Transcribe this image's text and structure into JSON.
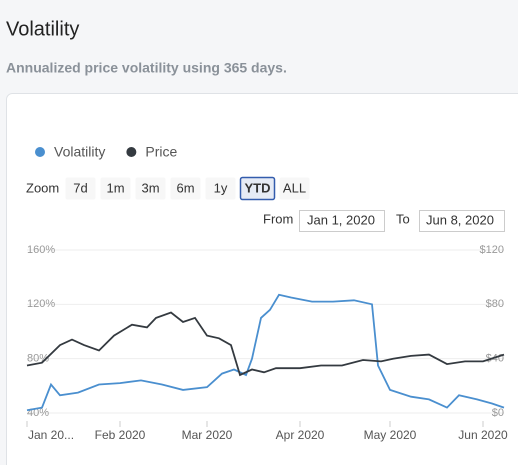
{
  "header": {
    "title": "Volatility",
    "subtitle": "Annualized price volatility using 365 days."
  },
  "zoom": {
    "label": "Zoom",
    "buttons": [
      "7d",
      "1m",
      "3m",
      "6m",
      "1y",
      "YTD",
      "ALL"
    ],
    "selected": "YTD"
  },
  "range": {
    "from_label": "From",
    "from": "Jan 1, 2020",
    "to_label": "To",
    "to": "Jun 8, 2020"
  },
  "chart_data": {
    "type": "line",
    "xlim": [
      "2020-01-01",
      "2020-06-08"
    ],
    "xticks": [
      {
        "value": "2020-01-01",
        "label": "Jan 20..."
      },
      {
        "value": "2020-02-01",
        "label": "Feb 2020"
      },
      {
        "value": "2020-03-01",
        "label": "Mar 2020"
      },
      {
        "value": "2020-04-01",
        "label": "Apr 2020"
      },
      {
        "value": "2020-05-01",
        "label": "May 2020"
      },
      {
        "value": "2020-06-01",
        "label": "Jun 2020"
      }
    ],
    "ylim": [
      40,
      160
    ],
    "yticks": [
      {
        "value": 40,
        "label": "40%"
      },
      {
        "value": 80,
        "label": "80%"
      },
      {
        "value": 120,
        "label": "120%"
      },
      {
        "value": 160,
        "label": "160%"
      }
    ],
    "y2lim": [
      0,
      120
    ],
    "y2ticks": [
      {
        "value": 0,
        "label": "$0"
      },
      {
        "value": 40,
        "label": "$40"
      },
      {
        "value": 80,
        "label": "$80"
      },
      {
        "value": 120,
        "label": "$120"
      }
    ],
    "legend": "top-left",
    "series": [
      {
        "name": "Volatility",
        "color": "#4a8fcf",
        "x": [
          "2020-01-01",
          "2020-01-06",
          "2020-01-09",
          "2020-01-12",
          "2020-01-18",
          "2020-01-25",
          "2020-02-01",
          "2020-02-08",
          "2020-02-15",
          "2020-02-22",
          "2020-03-01",
          "2020-03-06",
          "2020-03-10",
          "2020-03-14",
          "2020-03-16",
          "2020-03-19",
          "2020-03-22",
          "2020-03-25",
          "2020-03-29",
          "2020-04-05",
          "2020-04-12",
          "2020-04-19",
          "2020-04-25",
          "2020-04-27",
          "2020-05-01",
          "2020-05-08",
          "2020-05-14",
          "2020-05-20",
          "2020-05-24",
          "2020-05-30",
          "2020-06-04",
          "2020-06-08"
        ],
        "values": [
          42,
          44,
          61,
          53,
          55,
          61,
          62,
          64,
          61,
          57,
          59,
          69,
          72,
          68,
          80,
          110,
          116,
          127,
          125,
          122,
          122,
          123,
          120,
          75,
          57,
          52,
          50,
          44,
          53,
          50,
          47,
          44
        ]
      },
      {
        "name": "Price",
        "color": "#343a40",
        "axis": "y2",
        "x": [
          "2020-01-01",
          "2020-01-06",
          "2020-01-12",
          "2020-01-16",
          "2020-01-20",
          "2020-01-25",
          "2020-01-30",
          "2020-02-05",
          "2020-02-10",
          "2020-02-13",
          "2020-02-18",
          "2020-02-22",
          "2020-02-26",
          "2020-03-01",
          "2020-03-05",
          "2020-03-09",
          "2020-03-12",
          "2020-03-16",
          "2020-03-20",
          "2020-03-24",
          "2020-04-01",
          "2020-04-08",
          "2020-04-15",
          "2020-04-22",
          "2020-04-28",
          "2020-05-02",
          "2020-05-08",
          "2020-05-14",
          "2020-05-20",
          "2020-05-26",
          "2020-06-01",
          "2020-06-08"
        ],
        "values": [
          35,
          37,
          50,
          54,
          50,
          46,
          57,
          65,
          63,
          70,
          74,
          67,
          70,
          57,
          55,
          50,
          28,
          32,
          30,
          33,
          33,
          35,
          35,
          39,
          38,
          40,
          42,
          43,
          36,
          38,
          38,
          43
        ]
      }
    ]
  }
}
